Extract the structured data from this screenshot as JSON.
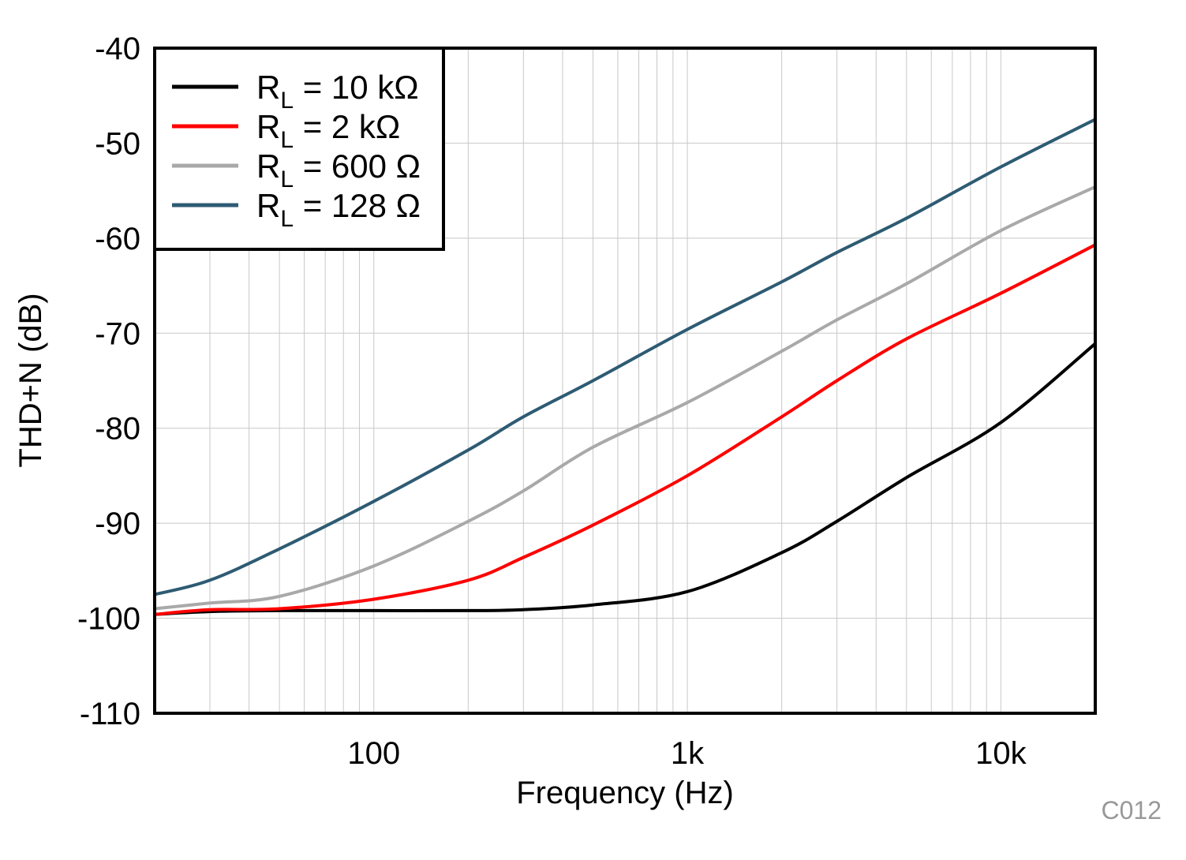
{
  "chart_data": {
    "type": "line",
    "title": "",
    "xlabel": "Frequency (Hz)",
    "ylabel": "THD+N (dB)",
    "x_scale": "log",
    "xlim": [
      20,
      20000
    ],
    "ylim": [
      -110,
      -40
    ],
    "grid": true,
    "legend_position": "top-left",
    "x_ticks": [
      {
        "value": 100,
        "label": "100"
      },
      {
        "value": 1000,
        "label": "1k"
      },
      {
        "value": 10000,
        "label": "10k"
      }
    ],
    "y_ticks": [
      {
        "value": -40,
        "label": "-40"
      },
      {
        "value": -50,
        "label": "-50"
      },
      {
        "value": -60,
        "label": "-60"
      },
      {
        "value": -70,
        "label": "-70"
      },
      {
        "value": -80,
        "label": "-80"
      },
      {
        "value": -90,
        "label": "-90"
      },
      {
        "value": -100,
        "label": "-100"
      },
      {
        "value": -110,
        "label": "-110"
      }
    ],
    "x": [
      20,
      30,
      50,
      100,
      200,
      300,
      500,
      1000,
      2000,
      3000,
      5000,
      10000,
      20000
    ],
    "series": [
      {
        "name": "RL = 10 kΩ",
        "label_main": "R",
        "label_sub": "L",
        "label_rest": " = 10 kΩ",
        "color": "#000000",
        "values": [
          -99.6,
          -99.3,
          -99.2,
          -99.2,
          -99.2,
          -99.1,
          -98.6,
          -97.2,
          -93.1,
          -89.8,
          -85.2,
          -79.4,
          -71.1
        ]
      },
      {
        "name": "RL = 2 kΩ",
        "label_main": "R",
        "label_sub": "L",
        "label_rest": " = 2 kΩ",
        "color": "#ff0000",
        "values": [
          -99.6,
          -99.1,
          -99.0,
          -98.0,
          -96.0,
          -93.6,
          -90.2,
          -85.0,
          -78.8,
          -75.0,
          -70.6,
          -65.8,
          -60.7
        ]
      },
      {
        "name": "RL = 600 Ω",
        "label_main": "R",
        "label_sub": "L",
        "label_rest": " = 600 Ω",
        "color": "#a9a9a9",
        "values": [
          -99.0,
          -98.4,
          -97.7,
          -94.5,
          -89.8,
          -86.6,
          -82.0,
          -77.3,
          -71.9,
          -68.6,
          -64.8,
          -59.2,
          -54.6
        ]
      },
      {
        "name": "RL = 128 Ω",
        "label_main": "R",
        "label_sub": "L",
        "label_rest": " = 128 Ω",
        "color": "#2e5b73",
        "values": [
          -97.5,
          -96.0,
          -92.7,
          -87.7,
          -82.3,
          -78.8,
          -75.0,
          -69.6,
          -64.6,
          -61.5,
          -57.9,
          -52.5,
          -47.5
        ]
      }
    ]
  },
  "watermark": "C012"
}
